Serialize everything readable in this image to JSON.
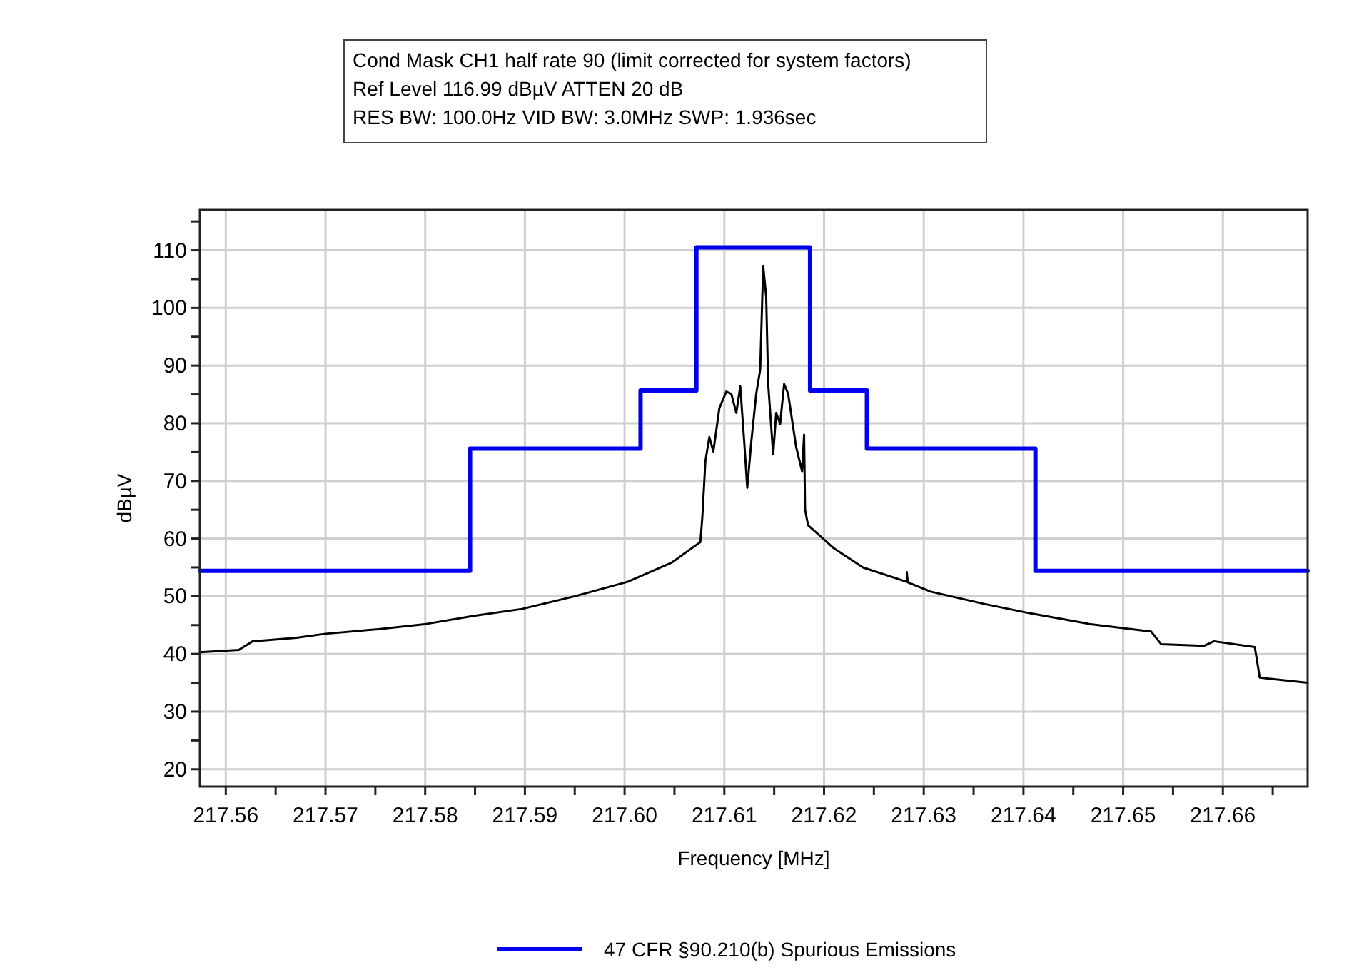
{
  "chart_data": {
    "type": "line",
    "title": "Cond Mask CH1 half rate 90 (limit corrected for system factors)",
    "annotations": [
      "Ref Level 116.99 dBµV    ATTEN 20 dB",
      "RES BW: 100.0Hz  VID BW: 3.0MHz  SWP: 1.936sec"
    ],
    "xlabel": "Frequency [MHz]",
    "ylabel": "dBµV",
    "xlim": [
      217.5574,
      217.6685
    ],
    "ylim": [
      17,
      117
    ],
    "xticks": [
      217.56,
      {
        "value": 217.565,
        "label": null
      },
      217.57,
      {
        "value": 217.575,
        "label": null
      },
      217.58,
      {
        "value": 217.585,
        "label": null
      },
      217.59,
      {
        "value": 217.595,
        "label": null
      },
      {
        "value": 217.6,
        "label": "217.60"
      },
      {
        "value": 217.605,
        "label": null
      },
      217.61,
      {
        "value": 217.615,
        "label": null
      },
      217.62,
      {
        "value": 217.625,
        "label": null
      },
      217.63,
      {
        "value": 217.635,
        "label": null
      },
      217.64,
      {
        "value": 217.645,
        "label": null
      },
      217.65,
      {
        "value": 217.655,
        "label": null
      },
      217.66,
      {
        "value": 217.665,
        "label": null
      }
    ],
    "yticks": [
      20,
      {
        "value": 25,
        "label": null
      },
      30,
      {
        "value": 35,
        "label": null
      },
      40,
      {
        "value": 45,
        "label": null
      },
      50,
      {
        "value": 55,
        "label": null
      },
      60,
      {
        "value": 65,
        "label": null
      },
      70,
      {
        "value": 75,
        "label": null
      },
      80,
      {
        "value": 85,
        "label": null
      },
      90,
      {
        "value": 95,
        "label": null
      },
      100,
      {
        "value": 105,
        "label": null
      },
      110,
      {
        "value": 115,
        "label": null
      }
    ],
    "grid": true,
    "legend": "bottom",
    "marker": "none",
    "line_style": "solid",
    "series": [
      {
        "name": "47 CFR §90.210(b) Spurious Emissions",
        "color": "#0000ee",
        "x": [
          217.5574,
          217.5845,
          217.5845,
          217.6016,
          217.6016,
          217.6072,
          217.6072,
          217.6186,
          217.6186,
          217.6243,
          217.6243,
          217.6412,
          217.6412,
          217.6685
        ],
        "values": [
          54.4,
          54.4,
          75.6,
          75.6,
          85.7,
          85.7,
          110.5,
          110.5,
          85.7,
          85.7,
          75.6,
          75.6,
          54.4,
          54.4
        ]
      },
      {
        "color": "#000000",
        "x": [
          217.5574,
          217.5613,
          217.5627,
          217.5671,
          217.57,
          217.5753,
          217.5801,
          217.5849,
          217.5897,
          217.595,
          217.6003,
          217.6047,
          217.6076,
          217.6078,
          217.6081,
          217.6085,
          217.6089,
          217.6095,
          217.6102,
          217.6107,
          217.6112,
          217.6116,
          217.612,
          217.6123,
          217.6127,
          217.6132,
          217.6136,
          217.6139,
          217.6142,
          217.6144,
          217.6149,
          217.6152,
          217.6156,
          217.616,
          217.6164,
          217.6172,
          217.6178,
          217.618,
          217.6181,
          217.6184,
          217.621,
          217.6239,
          217.6283,
          217.6283,
          217.6284,
          217.6307,
          217.636,
          217.6408,
          217.6466,
          217.6528,
          217.6538,
          217.6581,
          217.6591,
          217.6632,
          217.6637,
          217.6685
        ],
        "values": [
          40.3,
          40.7,
          42.2,
          42.8,
          43.5,
          44.3,
          45.2,
          46.6,
          47.8,
          50.0,
          52.5,
          55.8,
          59.4,
          63.8,
          73.4,
          77.6,
          75.1,
          82.6,
          85.5,
          85.1,
          81.8,
          86.4,
          76.7,
          68.8,
          76.7,
          85.1,
          89.3,
          107.3,
          101.9,
          86.8,
          74.6,
          81.8,
          79.9,
          86.8,
          85.1,
          75.9,
          71.7,
          78.0,
          65.0,
          62.3,
          58.3,
          55.0,
          52.5,
          54.2,
          52.4,
          50.8,
          48.7,
          47.0,
          45.2,
          43.9,
          41.7,
          41.4,
          42.2,
          41.2,
          35.9,
          35.0
        ]
      }
    ]
  }
}
